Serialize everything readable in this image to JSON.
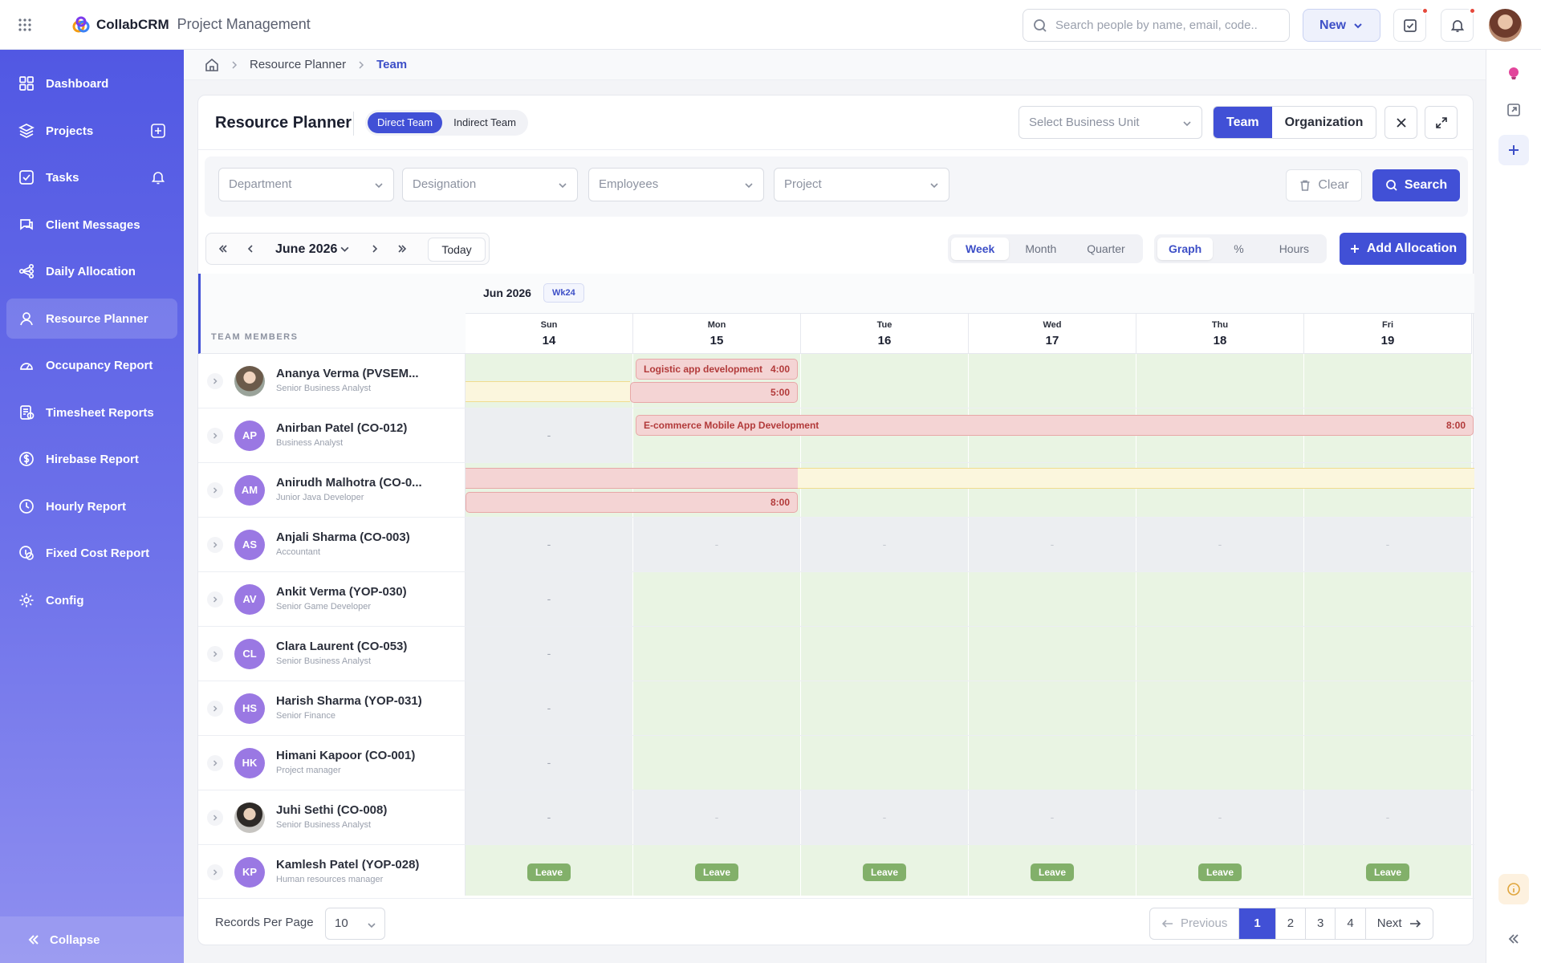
{
  "app": {
    "brand": "CollabCRM",
    "module": "Project Management"
  },
  "topbar": {
    "search_placeholder": "Search people by name, email, code..",
    "new_label": "New"
  },
  "sidebar": {
    "items": [
      {
        "label": "Dashboard",
        "icon": "grid-icon"
      },
      {
        "label": "Projects",
        "icon": "layers-icon"
      },
      {
        "label": "Tasks",
        "icon": "check-square-icon"
      },
      {
        "label": "Client Messages",
        "icon": "chat-icon"
      },
      {
        "label": "Daily Allocation",
        "icon": "share-icon"
      },
      {
        "label": "Resource Planner",
        "icon": "user-icon"
      },
      {
        "label": "Occupancy Report",
        "icon": "gauge-icon"
      },
      {
        "label": "Timesheet Reports",
        "icon": "timesheet-icon"
      },
      {
        "label": "Hirebase Report",
        "icon": "dollar-icon"
      },
      {
        "label": "Hourly Report",
        "icon": "clock-icon"
      },
      {
        "label": "Fixed Cost Report",
        "icon": "coin-icon"
      },
      {
        "label": "Config",
        "icon": "gear-icon"
      }
    ],
    "collapse_label": "Collapse"
  },
  "breadcrumb": {
    "items": [
      "Resource Planner",
      "Team"
    ]
  },
  "planner": {
    "title": "Resource Planner",
    "team_tabs": [
      "Direct Team",
      "Indirect Team"
    ],
    "business_unit_placeholder": "Select Business Unit",
    "scope_tabs": [
      "Team",
      "Organization"
    ],
    "filters": [
      "Department",
      "Designation",
      "Employees",
      "Project"
    ],
    "clear_label": "Clear",
    "search_label": "Search",
    "month_label": "June 2026",
    "today_label": "Today",
    "view_tabs": [
      "Week",
      "Month",
      "Quarter"
    ],
    "mode_tabs": [
      "Graph",
      "%",
      "Hours"
    ],
    "add_label": "Add Allocation",
    "members_header": "TEAM MEMBERS",
    "month_header": "Jun 2026",
    "week_badge": "Wk24",
    "days": [
      {
        "name": "Sun",
        "date": "14"
      },
      {
        "name": "Mon",
        "date": "15"
      },
      {
        "name": "Tue",
        "date": "16"
      },
      {
        "name": "Wed",
        "date": "17"
      },
      {
        "name": "Thu",
        "date": "18"
      },
      {
        "name": "Fri",
        "date": "19"
      }
    ],
    "members": [
      {
        "name": "Ananya Verma (PVSEM...",
        "role": "Senior Business Analyst",
        "initials": ""
      },
      {
        "name": "Anirban Patel (CO-012)",
        "role": "Business Analyst",
        "initials": "AP"
      },
      {
        "name": "Anirudh Malhotra (CO-0...",
        "role": "Junior Java Developer",
        "initials": "AM"
      },
      {
        "name": "Anjali Sharma (CO-003)",
        "role": "Accountant",
        "initials": "AS"
      },
      {
        "name": "Ankit Verma (YOP-030)",
        "role": "Senior Game Developer",
        "initials": "AV"
      },
      {
        "name": "Clara Laurent (CO-053)",
        "role": "Senior Business Analyst",
        "initials": "CL"
      },
      {
        "name": "Harish Sharma (YOP-031)",
        "role": "Senior Finance",
        "initials": "HS"
      },
      {
        "name": "Himani Kapoor (CO-001)",
        "role": "Project manager",
        "initials": "HK"
      },
      {
        "name": "Juhi Sethi (CO-008)",
        "role": "Senior Business Analyst",
        "initials": ""
      },
      {
        "name": "Kamlesh Patel (YOP-028)",
        "role": "Human resources manager",
        "initials": "KP"
      }
    ],
    "allocations": {
      "a1": {
        "label": "Logistic app development",
        "hours": "4:00"
      },
      "a2": {
        "hours": "5:00"
      },
      "a3": {
        "label": "E-commerce Mobile App Development",
        "hours": "8:00"
      },
      "a4": {
        "hours": "8:00"
      }
    },
    "dash": "-",
    "leave_label": "Leave"
  },
  "footer": {
    "rpp_label": "Records Per Page",
    "rpp_value": "10",
    "prev_label": "Previous",
    "pages": [
      "1",
      "2",
      "3",
      "4"
    ],
    "next_label": "Next"
  }
}
